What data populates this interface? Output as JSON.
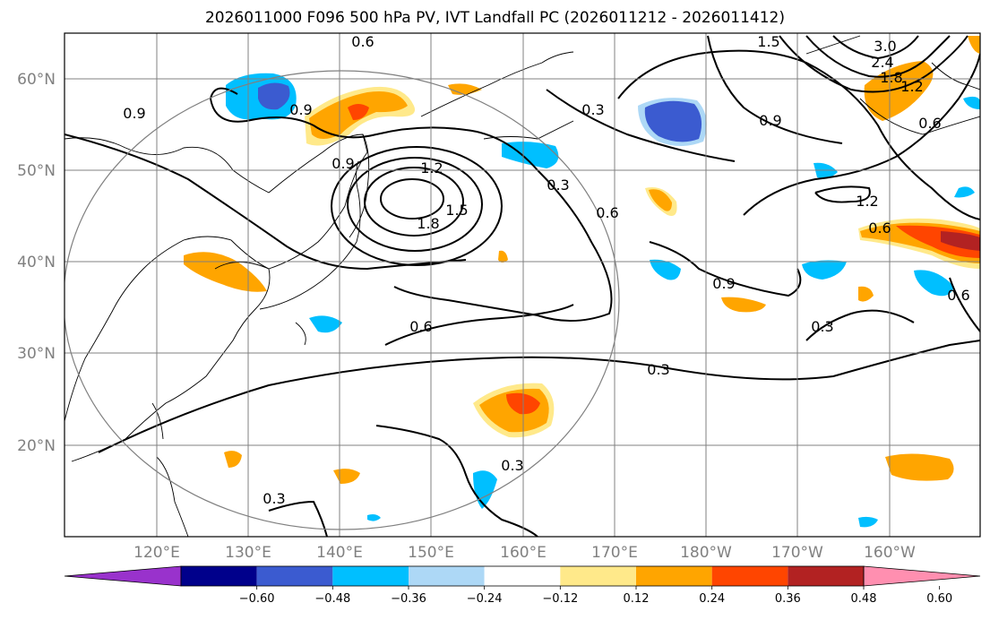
{
  "title": "2026011000 F096 500 hPa PV, IVT Landfall PC (2026011212 - 2026011412)",
  "map": {
    "lon_labels": [
      "120°E",
      "130°E",
      "140°E",
      "150°E",
      "160°E",
      "170°E",
      "180°W",
      "170°W",
      "160°W"
    ],
    "lat_labels": [
      "60°N",
      "50°N",
      "40°N",
      "30°N",
      "20°N"
    ],
    "contour_labels": [
      "0.6",
      "0.9",
      "0.9",
      "0.9",
      "0.3",
      "0.3",
      "0.6",
      "0.6",
      "0.6",
      "1.2",
      "1.5",
      "1.8",
      "0.9",
      "0.9",
      "0.3",
      "0.3",
      "0.3",
      "0.3",
      "0.6",
      "1.2",
      "1.5",
      "2.4",
      "3.0",
      "1.8",
      "1.2",
      "0.6"
    ],
    "colors": {
      "contour": "#000000",
      "gridline": "#808080",
      "coastline": "#000000"
    }
  },
  "colorbar": {
    "labels": [
      "−0.60",
      "−0.48",
      "−0.36",
      "−0.24",
      "−0.12",
      "0.12",
      "0.24",
      "0.36",
      "0.48",
      "0.60"
    ],
    "colors": [
      "#9932cc",
      "#00008b",
      "#3b5bd0",
      "#00bfff",
      "#add8f6",
      "#ffffff",
      "#ffe98a",
      "#ffa500",
      "#ff4500",
      "#b22222",
      "#ff8fb0"
    ]
  }
}
